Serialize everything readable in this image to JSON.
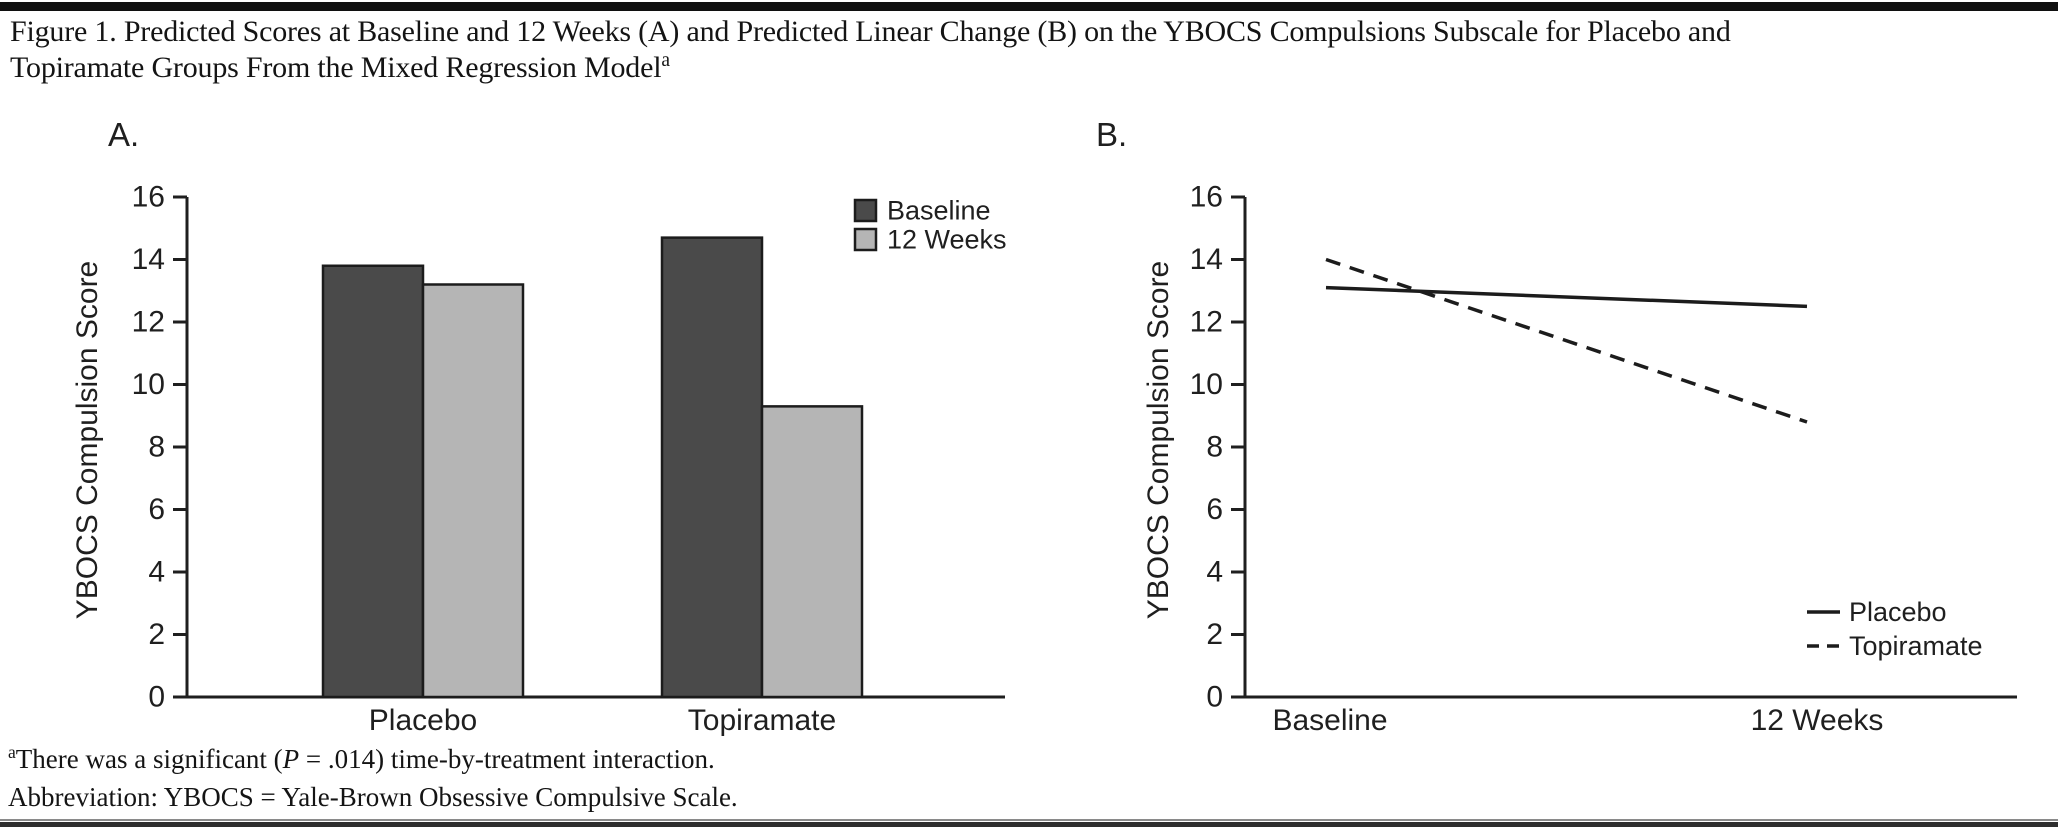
{
  "figure": {
    "title": "Figure 1. Predicted Scores at Baseline and 12 Weeks (A) and Predicted Linear Change (B) on the YBOCS Compulsions Subscale for Placebo and Topiramate Groups From the Mixed Regression Model",
    "title_superscript": "a",
    "footnote": {
      "superscript": "a",
      "text_before_p": "There was a significant (",
      "p_symbol": "P",
      "text_after_p": " = .014) time-by-treatment interaction.",
      "abbreviation_line": "Abbreviation: YBOCS = Yale-Brown Obsessive Compulsive Scale."
    }
  },
  "colors": {
    "baseline_bar": "#4a4a4a",
    "twelve_weeks_bar": "#b5b5b5",
    "bar_outline": "#1c1c1c",
    "axis": "#1f1f1f",
    "line": "#1c1c1c",
    "text": "#1f1f1f",
    "top_bar": "#101010",
    "bottom_rule_dark": "#2e2e2e",
    "bottom_rule_light": "#8a8a8a"
  },
  "chart_data": [
    {
      "id": "A",
      "panel_label": "A.",
      "type": "bar",
      "title": "",
      "xlabel": "",
      "ylabel": "YBOCS Compulsion Score",
      "categories": [
        "Placebo",
        "Topiramate"
      ],
      "series": [
        {
          "name": "Baseline",
          "values": [
            13.8,
            14.7
          ],
          "color_key": "baseline_bar"
        },
        {
          "name": "12 Weeks",
          "values": [
            13.2,
            9.3
          ],
          "color_key": "twelve_weeks_bar"
        }
      ],
      "ylim": [
        0,
        16
      ],
      "ytick_step": 2,
      "grid": false,
      "legend_position": "top-right"
    },
    {
      "id": "B",
      "panel_label": "B.",
      "type": "line",
      "title": "",
      "xlabel": "",
      "ylabel": "YBOCS Compulsion Score",
      "categories": [
        "Baseline",
        "12 Weeks"
      ],
      "series": [
        {
          "name": "Placebo",
          "values": [
            13.1,
            12.5
          ],
          "line_style": "solid"
        },
        {
          "name": "Topiramate",
          "values": [
            14.0,
            8.8
          ],
          "line_style": "dashed"
        }
      ],
      "ylim": [
        0,
        16
      ],
      "ytick_step": 2,
      "grid": false,
      "legend_position": "lower-right"
    }
  ]
}
